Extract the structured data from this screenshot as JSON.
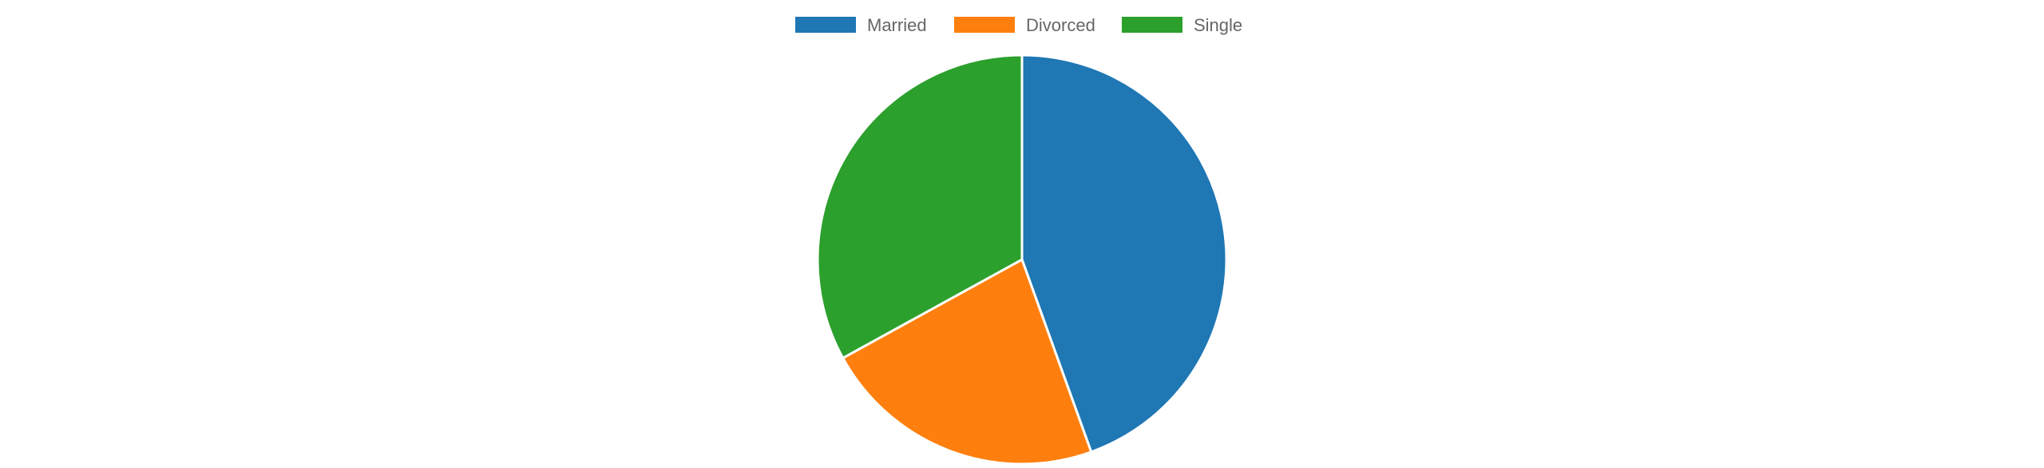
{
  "chart_data": {
    "type": "pie",
    "title": "",
    "legend_position": "top",
    "slices": [
      {
        "label": "Married",
        "value": 44.5,
        "color": "#1f77b4"
      },
      {
        "label": "Divorced",
        "value": 22.5,
        "color": "#ff7f0e"
      },
      {
        "label": "Single",
        "value": 33.0,
        "color": "#2ca02c"
      }
    ]
  }
}
